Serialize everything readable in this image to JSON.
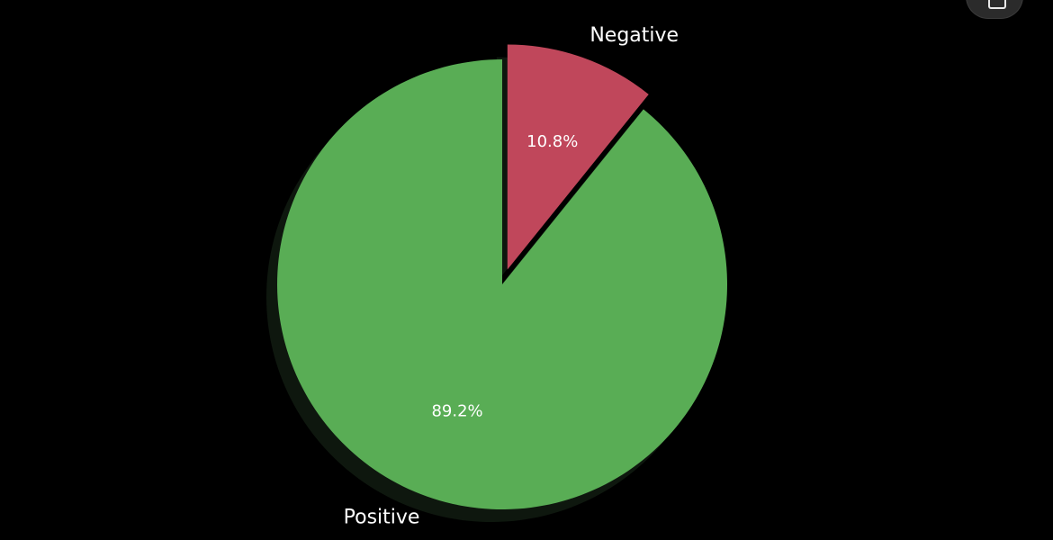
{
  "chart_data": {
    "type": "pie",
    "title": "",
    "start_angle_deg": 90,
    "direction": "clockwise",
    "shadow": true,
    "slices": [
      {
        "label": "Negative",
        "value": 10.8,
        "pct_label": "10.8%",
        "color": "#c0475b",
        "exploded": true
      },
      {
        "label": "Positive",
        "value": 89.2,
        "pct_label": "89.2%",
        "color": "#59ad55",
        "exploded": false
      }
    ]
  },
  "ui": {
    "corner_button_icon": "expand-icon"
  }
}
